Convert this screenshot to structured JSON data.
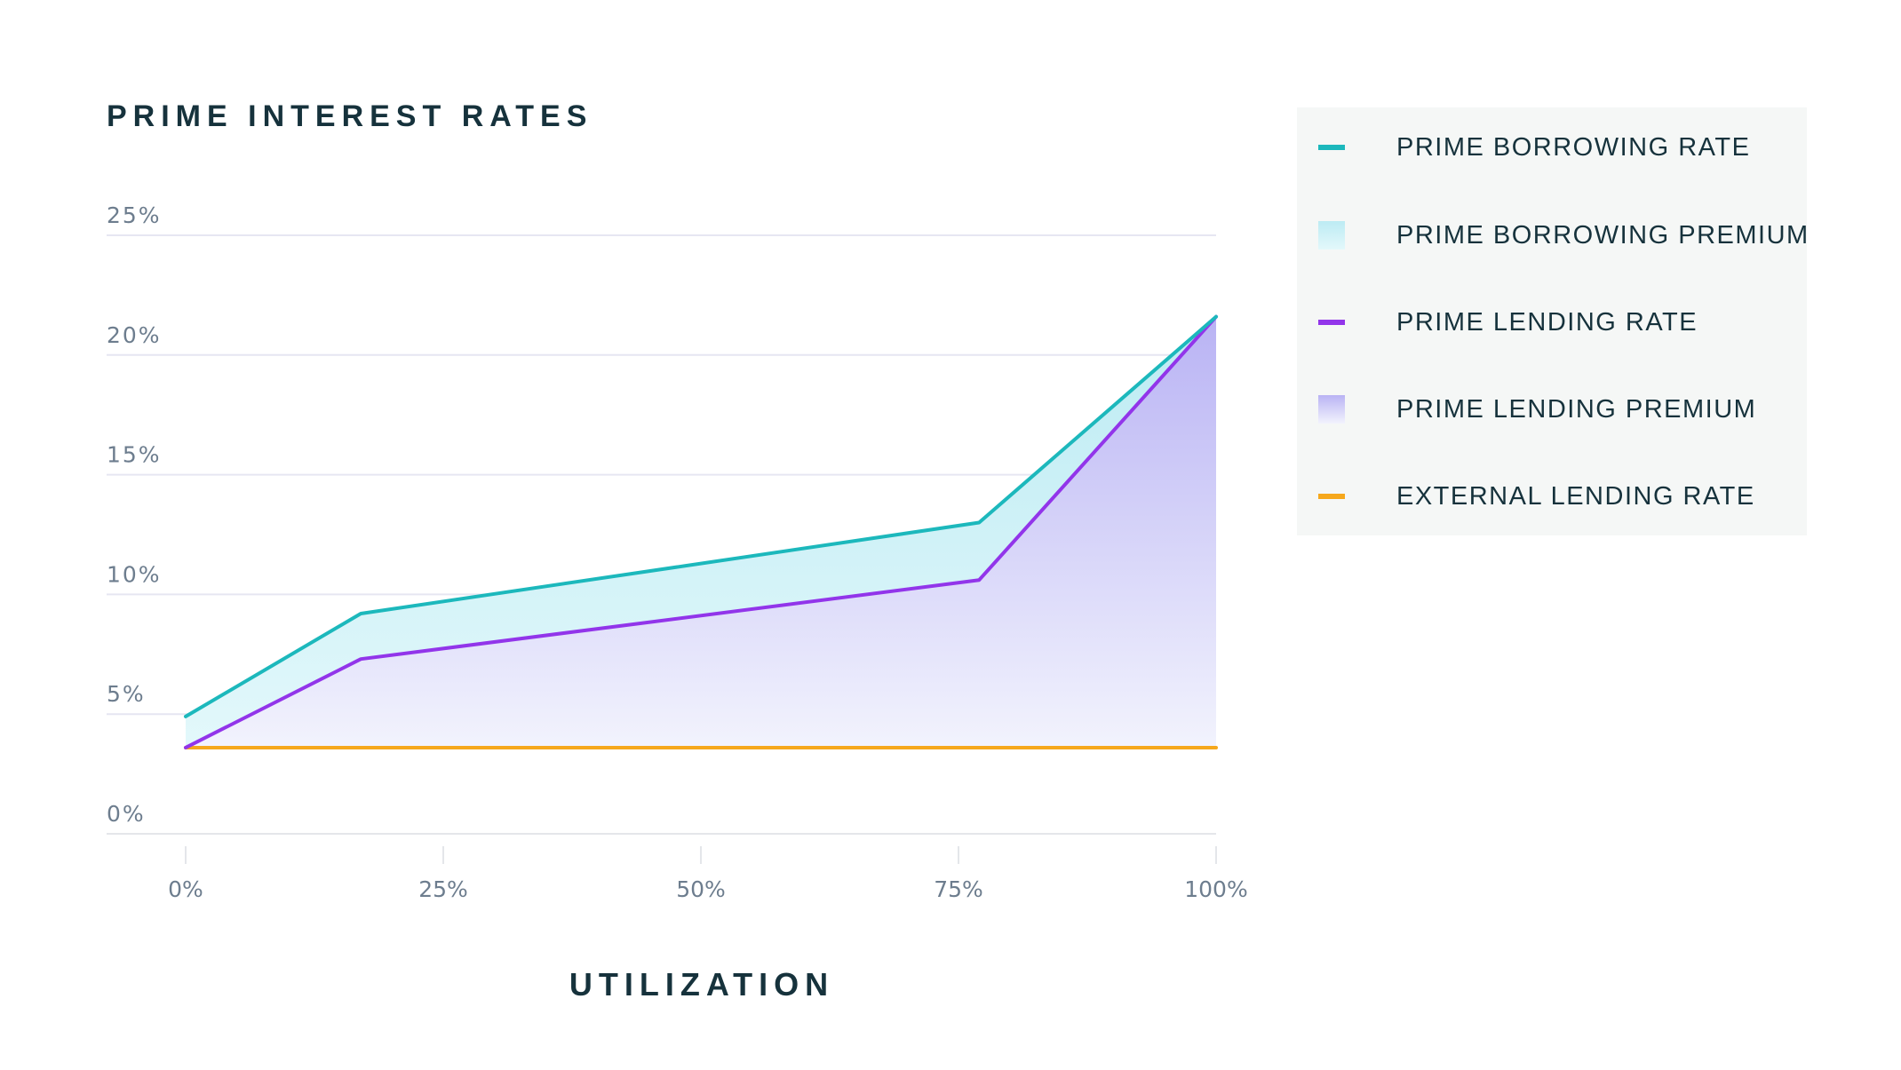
{
  "chart_data": {
    "type": "area",
    "title": "PRIME INTEREST RATES",
    "xlabel": "UTILIZATION",
    "ylabel": "",
    "x_ticks": [
      "0%",
      "25%",
      "50%",
      "75%",
      "100%"
    ],
    "y_ticks": [
      "0%",
      "5%",
      "10%",
      "15%",
      "20%",
      "25%"
    ],
    "xlim": [
      0,
      100
    ],
    "ylim": [
      0,
      25
    ],
    "grid": true,
    "legend_position": "right",
    "series": [
      {
        "name": "PRIME BORROWING RATE",
        "kind": "line",
        "color": "#1cb8bc",
        "x": [
          0,
          17,
          77,
          100
        ],
        "y": [
          4.9,
          9.2,
          13.0,
          21.6
        ]
      },
      {
        "name": "PRIME BORROWING PREMIUM",
        "kind": "area",
        "colors": [
          "#bcebf3",
          "#e3f8fb"
        ]
      },
      {
        "name": "PRIME LENDING RATE",
        "kind": "line",
        "color": "#9235ea",
        "x": [
          0,
          17,
          77,
          100
        ],
        "y": [
          3.6,
          7.3,
          10.6,
          21.6
        ]
      },
      {
        "name": "PRIME LENDING PREMIUM",
        "kind": "area",
        "colors": [
          "#b9b3f4",
          "#f2f3fd"
        ]
      },
      {
        "name": "EXTERNAL LENDING RATE",
        "kind": "line",
        "color": "#f6a81c",
        "x": [
          0,
          100
        ],
        "y": [
          3.6,
          3.6
        ]
      }
    ]
  }
}
